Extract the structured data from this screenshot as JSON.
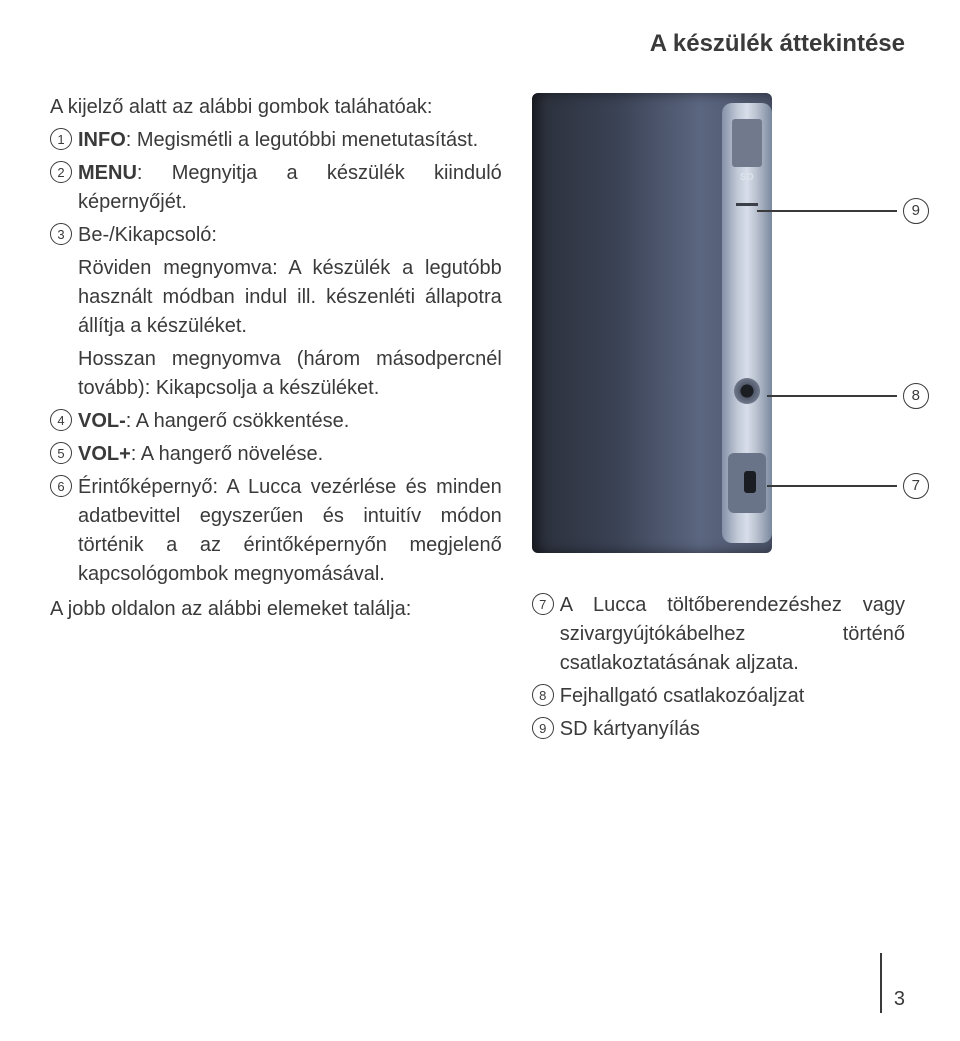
{
  "page_title": "A készülék áttekintése",
  "left": {
    "intro": "A kijelző alatt az alábbi gombok taláhatóak:",
    "items": [
      {
        "n": "1",
        "bold": "INFO",
        "text": ": Megismétli a legutóbbi menetutasítást."
      },
      {
        "n": "2",
        "bold": "MENU",
        "text": ": Megnyitja a készülék kiinduló képernyőjét."
      },
      {
        "n": "3",
        "bold": "",
        "text": "Be-/Kikapcsoló:"
      },
      {
        "n": "4",
        "bold": "VOL-",
        "text": ": A hangerő csökkentése."
      },
      {
        "n": "5",
        "bold": "VOL+",
        "text": ": A hangerő növelése."
      },
      {
        "n": "6",
        "bold": "",
        "text": "Érintőképernyő: A Lucca vezérlése és minden adatbevittel egyszerűen és intuitív módon történik a az érintőképernyőn megjelenő kapcsológombok megnyomásával."
      }
    ],
    "sub3a": "Röviden megnyomva: A készülék a legutóbb használt módban indul ill. készenléti állapotra állítja a készüléket.",
    "sub3b": "Hosszan megnyomva (három másodpercnél tovább): Kikapcsolja a készüléket.",
    "right_intro": "A jobb oldalon az alábbi elemeket találja:"
  },
  "right": {
    "callouts": {
      "c9": "9",
      "c8": "8",
      "c7": "7"
    },
    "items": [
      {
        "n": "7",
        "text": "A Lucca töltőberendezéshez vagy szivargyújtókábelhez történő csatlakoztatásának aljzata."
      },
      {
        "n": "8",
        "text": "Fejhallgató csatlakozóaljzat"
      },
      {
        "n": "9",
        "text": "SD kártyanyílás"
      }
    ]
  },
  "device_colors": {
    "body_gradient": [
      "#2a2f3a",
      "#3a4254",
      "#5b6680",
      "#4a5268"
    ],
    "edge_gradient": [
      "#8490a8",
      "#c0c8d6",
      "#d8deea",
      "#b8c0ce",
      "#7a889e"
    ],
    "slot": "#707a8c",
    "dark": "#1a1d22"
  },
  "page_number": "3"
}
